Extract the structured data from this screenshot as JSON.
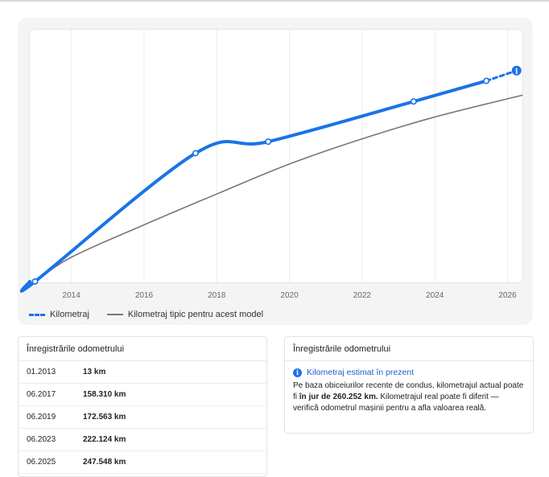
{
  "chart_data": {
    "type": "line",
    "x_ticks": [
      "2014",
      "2016",
      "2018",
      "2020",
      "2022",
      "2024",
      "2026"
    ],
    "xlim": [
      2012.9,
      2026.3
    ],
    "ylim": [
      0,
      262000
    ],
    "series": [
      {
        "name": "Kilometraj",
        "color": "#1a73e8",
        "style": "solid-thick",
        "points": [
          {
            "x": "01.2013",
            "y": 13
          },
          {
            "x": "06.2017",
            "y": 158310
          },
          {
            "x": "06.2019",
            "y": 172563
          },
          {
            "x": "06.2023",
            "y": 222124
          },
          {
            "x": "06.2025",
            "y": 247548
          }
        ],
        "estimate": {
          "x": "today",
          "y": 260252
        }
      },
      {
        "name": "Kilometraj tipic pentru acest model",
        "color": "#777777",
        "style": "solid-thin",
        "points": [
          {
            "x": "01.2013",
            "y": 0
          },
          {
            "x": "01.2014",
            "y": 30000
          },
          {
            "x": "01.2016",
            "y": 70000
          },
          {
            "x": "01.2018",
            "y": 108000
          },
          {
            "x": "01.2020",
            "y": 145000
          },
          {
            "x": "01.2022",
            "y": 176000
          },
          {
            "x": "01.2024",
            "y": 203000
          },
          {
            "x": "06.2026",
            "y": 230000
          }
        ]
      }
    ],
    "grid": "vertical",
    "legend_position": "bottom-left"
  },
  "legend": {
    "series1": "Kilometraj",
    "series2": "Kilometraj tipic pentru acest model"
  },
  "records": {
    "title": "Înregistrările odometrului",
    "rows": [
      {
        "date": "01.2013",
        "km": "13 km"
      },
      {
        "date": "06.2017",
        "km": "158.310 km"
      },
      {
        "date": "06.2019",
        "km": "172.563 km"
      },
      {
        "date": "06.2023",
        "km": "222.124 km"
      },
      {
        "date": "06.2025",
        "km": "247.548 km"
      }
    ]
  },
  "estimate_panel": {
    "title": "Înregistrările odometrului",
    "heading": "Kilometraj estimat în prezent",
    "text_before": "Pe baza obiceiurilor recente de condus, kilometrajul actual poate fi ",
    "text_bold": "în jur de 260.252 km.",
    "text_after": " Kilometrajul real poate fi diferit — verifică odometrul mașinii pentru a afla valoarea reală."
  }
}
